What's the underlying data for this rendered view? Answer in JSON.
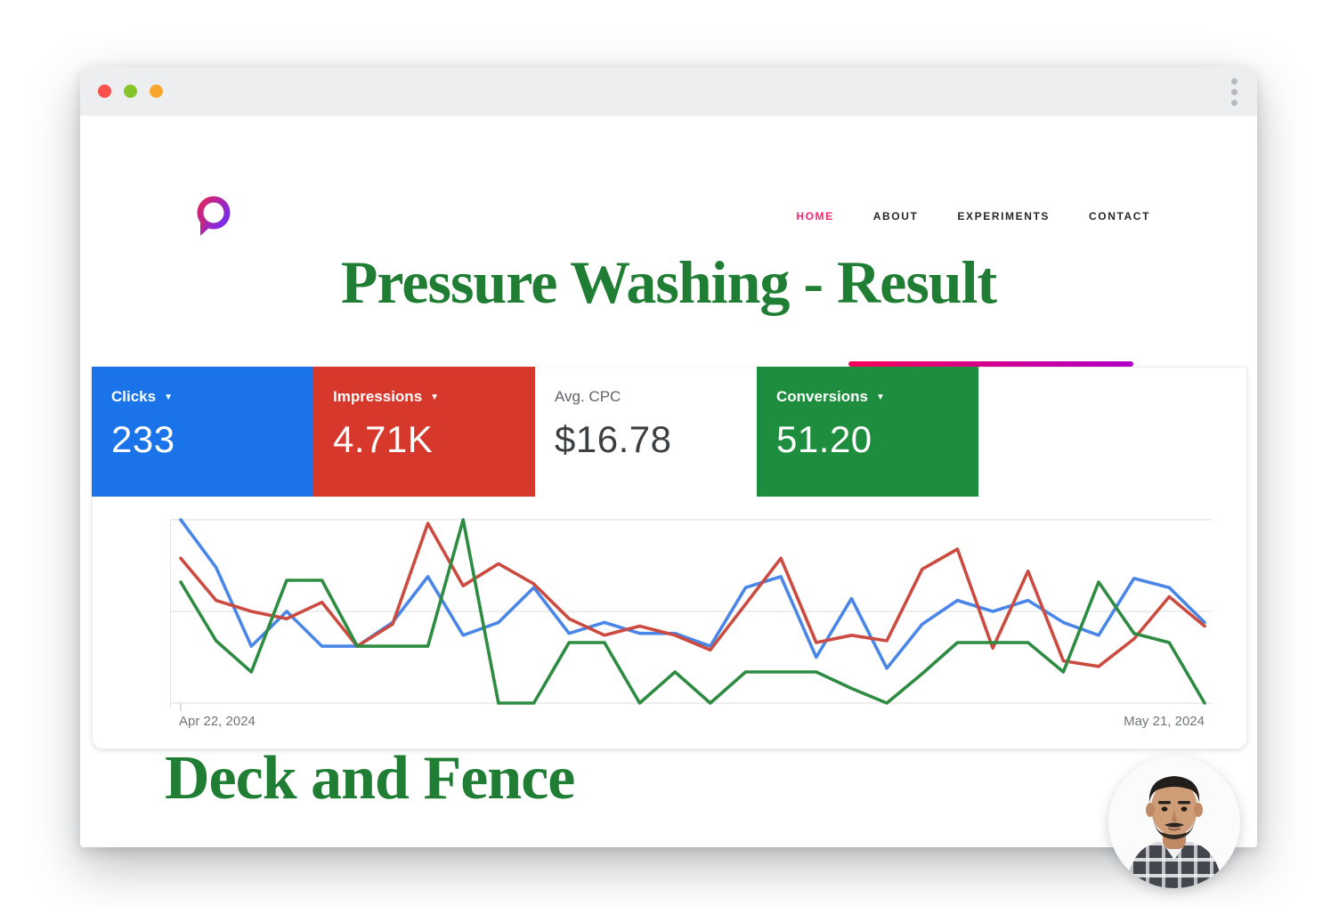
{
  "window": {
    "traffic_lights": [
      "#fb504c",
      "#84c529",
      "#f7a72e"
    ],
    "kebab_dot_color": "#b4bac0"
  },
  "logo": {
    "name": "speech-bubble-p-logo",
    "gradient": [
      "#e0245e",
      "#7d2ae8"
    ]
  },
  "nav": {
    "active_color": "#f3256d",
    "inactive_color": "#23282e",
    "items": [
      {
        "label": "HOME",
        "active": true
      },
      {
        "label": "ABOUT",
        "active": false
      },
      {
        "label": "EXPERIMENTS",
        "active": false
      },
      {
        "label": "CONTACT",
        "active": false
      }
    ]
  },
  "heading": {
    "title": "Pressure Washing - Result",
    "subtitle": "Deck and Fence",
    "color": "#1f7e33"
  },
  "accent_line": {
    "gradient": [
      "#f50057",
      "#b100c8"
    ]
  },
  "scorecards": [
    {
      "label": "Clicks",
      "value": "233",
      "bg": "#1a73e8",
      "text": "#ffffff",
      "label_color": "#ffffff",
      "dropdown": true
    },
    {
      "label": "Impressions",
      "value": "4.71K",
      "bg": "#d6382c",
      "text": "#ffffff",
      "label_color": "#ffffff",
      "dropdown": true
    },
    {
      "label": "Avg. CPC",
      "value": "$16.78",
      "bg": "#ffffff",
      "text": "#3c4043",
      "label_color": "#5f6368",
      "dropdown": false
    },
    {
      "label": "Conversions",
      "value": "51.20",
      "bg": "#1e8e3e",
      "text": "#ffffff",
      "label_color": "#ffffff",
      "dropdown": true
    }
  ],
  "chart_data": {
    "type": "line",
    "x_start_label": "Apr 22, 2024",
    "x_end_label": "May 21, 2024",
    "x_points": 30,
    "ylim": [
      0,
      100
    ],
    "grid": true,
    "legend": "none",
    "series": [
      {
        "name": "Clicks",
        "color": "#4a86e8",
        "values": [
          100,
          74,
          31,
          50,
          31,
          31,
          44,
          69,
          37,
          44,
          63,
          38,
          44,
          38,
          38,
          31,
          63,
          69,
          25,
          57,
          19,
          43,
          56,
          50,
          56,
          44,
          37,
          68,
          63,
          44
        ]
      },
      {
        "name": "Impressions",
        "color": "#cc4b40",
        "values": [
          79,
          56,
          50,
          46,
          55,
          31,
          43,
          98,
          64,
          76,
          65,
          46,
          37,
          42,
          37,
          29,
          54,
          79,
          33,
          37,
          34,
          73,
          84,
          30,
          72,
          23,
          20,
          35,
          58,
          42
        ]
      },
      {
        "name": "Conversions",
        "color": "#2e8b42",
        "values": [
          66,
          34,
          17,
          67,
          67,
          31,
          31,
          31,
          100,
          0,
          0,
          33,
          33,
          0,
          17,
          0,
          17,
          17,
          17,
          8,
          0,
          16,
          33,
          33,
          33,
          17,
          66,
          38,
          33,
          0
        ]
      }
    ]
  },
  "avatar": {
    "name": "profile-photo-man-plaid-shirt"
  }
}
